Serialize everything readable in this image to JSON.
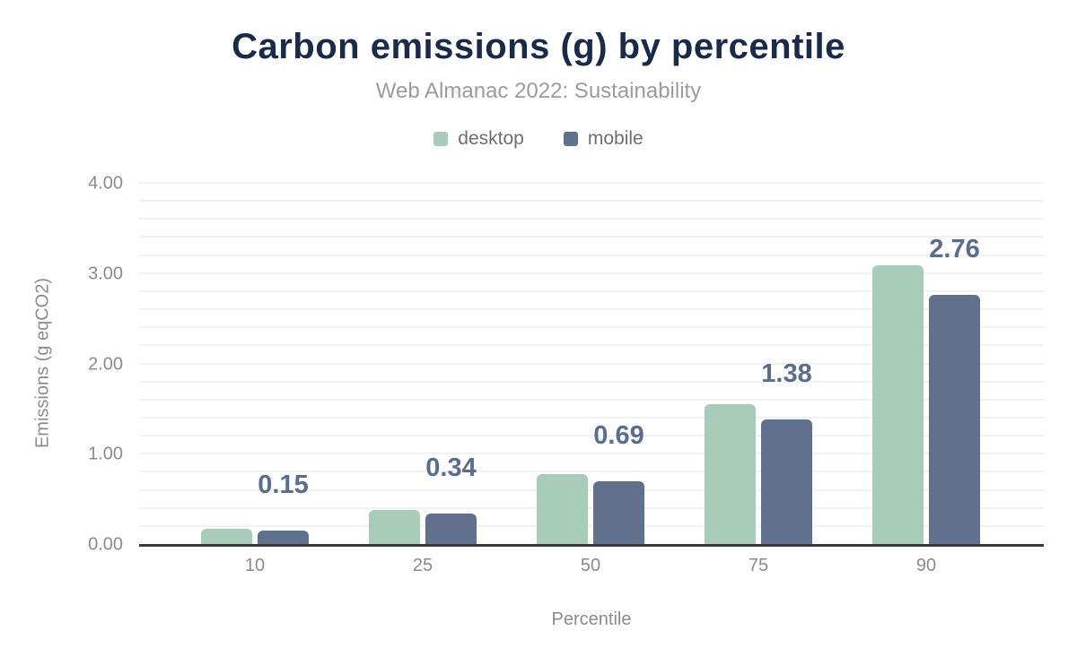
{
  "chart_data": {
    "type": "bar",
    "title": "Carbon emissions (g) by percentile",
    "subtitle": "Web Almanac 2022: Sustainability",
    "xlabel": "Percentile",
    "ylabel": "Emissions (g eqCO2)",
    "categories": [
      "10",
      "25",
      "50",
      "75",
      "90"
    ],
    "series": [
      {
        "name": "desktop",
        "color": "#a8cbba",
        "values": [
          0.17,
          0.38,
          0.77,
          1.55,
          3.09
        ]
      },
      {
        "name": "mobile",
        "color": "#60708d",
        "values": [
          0.15,
          0.34,
          0.69,
          1.38,
          2.76
        ]
      }
    ],
    "value_labels": {
      "on_series": "mobile",
      "labels": [
        "0.15",
        "0.34",
        "0.69",
        "1.38",
        "2.76"
      ]
    },
    "ylim": [
      0,
      4
    ],
    "yticks": [
      {
        "value": 0,
        "label": "0.00"
      },
      {
        "value": 1,
        "label": "1.00"
      },
      {
        "value": 2,
        "label": "2.00"
      },
      {
        "value": 3,
        "label": "3.00"
      },
      {
        "value": 4,
        "label": "4.00"
      }
    ],
    "grid": true,
    "grid_step": 0.2,
    "legend_position": "top"
  },
  "colors": {
    "title": "#1a2b4a",
    "subtitle": "#9b9b9b",
    "legend_text": "#6e6e6e",
    "desktop_bar": "#a8cbba",
    "mobile_bar": "#60708d",
    "value_label": "#5a6d8e",
    "axis_text": "#8b8b8b",
    "gridline": "#f2f2f2",
    "axis_line": "#37393b",
    "background": "#ffffff"
  }
}
